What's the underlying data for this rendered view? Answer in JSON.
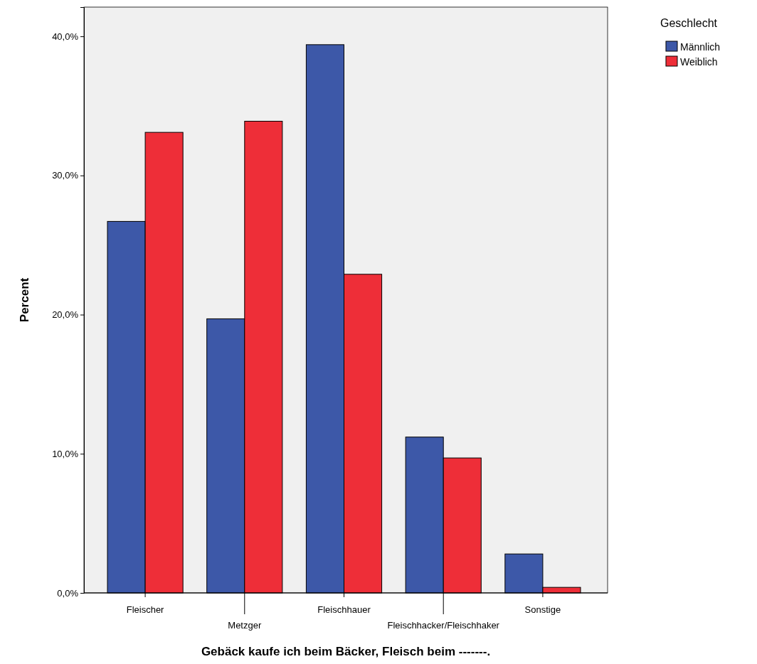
{
  "chart_data": {
    "type": "bar",
    "xlabel": "Gebäck kaufe ich beim Bäcker, Fleisch beim -------.",
    "ylabel": "Percent",
    "legend_title": "Geschlecht",
    "legend": "top right",
    "categories": [
      "Fleischer",
      "Metzger",
      "Fleischhauer",
      "Fleischhacker/Fleischhaker",
      "Sonstige"
    ],
    "series": [
      {
        "name": "Männlich",
        "color": "#3d58a8",
        "values": [
          26.7,
          19.7,
          39.4,
          11.2,
          2.8
        ]
      },
      {
        "name": "Weiblich",
        "color": "#ee2e38",
        "values": [
          33.1,
          33.9,
          22.9,
          9.7,
          0.4
        ]
      }
    ],
    "ylim": [
      0,
      42.1
    ],
    "yticks": [
      {
        "value": 0,
        "label": "0,0%"
      },
      {
        "value": 10,
        "label": "10,0%"
      },
      {
        "value": 20,
        "label": "20,0%"
      },
      {
        "value": 30,
        "label": "30,0%"
      },
      {
        "value": 40,
        "label": "40,0%"
      }
    ],
    "grid": false
  }
}
